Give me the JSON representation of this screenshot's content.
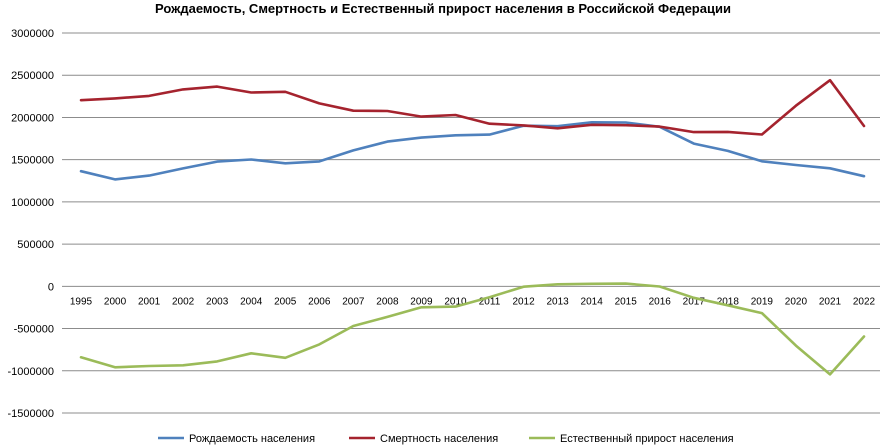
{
  "chart_data": {
    "type": "line",
    "title": "Рождаемость, Смертность и Естественный прирост населения в Российской Федерации",
    "xlabel": "",
    "ylabel": "",
    "ylim": [
      -1500000,
      3000000
    ],
    "yticks": [
      3000000,
      2500000,
      2000000,
      1500000,
      1000000,
      500000,
      0,
      -500000,
      -1000000,
      -1500000
    ],
    "ytick_labels": [
      "3000000",
      "2500000",
      "2000000",
      "1500000",
      "1000000",
      "500000",
      "0",
      "-500000",
      "-1000000",
      "-1500000"
    ],
    "grid": "horizontal",
    "legend": "bottom",
    "categories": [
      "1995",
      "2000",
      "2001",
      "2002",
      "2003",
      "2004",
      "2005",
      "2006",
      "2007",
      "2008",
      "2009",
      "2010",
      "2011",
      "2012",
      "2013",
      "2014",
      "2015",
      "2016",
      "2017",
      "2018",
      "2019",
      "2020",
      "2021",
      "2022"
    ],
    "series": [
      {
        "name": "Рождаемость населения",
        "color": "#4F81BD",
        "values": [
          1363806,
          1266800,
          1311604,
          1396967,
          1477301,
          1502477,
          1457376,
          1479637,
          1610122,
          1713947,
          1761687,
          1788948,
          1796629,
          1902084,
          1895822,
          1942683,
          1940579,
          1888729,
          1690307,
          1604344,
          1481074,
          1436514,
          1398253,
          1304087
        ]
      },
      {
        "name": "Смертность населения",
        "color": "#A5232E",
        "values": [
          2203811,
          2225332,
          2254856,
          2332272,
          2365826,
          2295402,
          2303935,
          2166703,
          2080445,
          2075954,
          2010543,
          2028516,
          1925720,
          1906335,
          1871809,
          1912347,
          1908541,
          1891015,
          1826125,
          1828910,
          1798307,
          2138586,
          2441594,
          1898644
        ]
      },
      {
        "name": "Естественный прирост населения",
        "color": "#9BBB59",
        "values": [
          -840005,
          -958532,
          -943252,
          -935305,
          -888525,
          -792925,
          -846559,
          -687066,
          -470323,
          -362007,
          -248856,
          -239568,
          -129091,
          -4251,
          24013,
          30336,
          32038,
          -2286,
          -135818,
          -224566,
          -317233,
          -702072,
          -1043341,
          -594557
        ]
      }
    ]
  }
}
